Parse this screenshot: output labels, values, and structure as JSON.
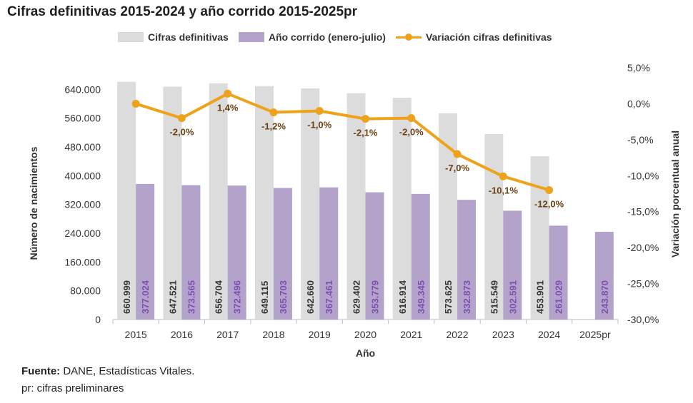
{
  "colors": {
    "gray": "#dcdcdc",
    "purple": "#b3a3ca",
    "orange": "#eea21c",
    "purple_text": "#7a4fb0",
    "label_brown": "#6b3f10",
    "dark_text": "#333333"
  },
  "chart_data": {
    "type": "bar",
    "title": "Cifras definitivas 2015-2024 y año corrido 2015-2025pr",
    "xlabel": "Año",
    "ylabel": "Número de nacimientos",
    "y2label": "Variación porcentual anual",
    "ylim": [
      0,
      640000
    ],
    "y2lim": [
      -30,
      5
    ],
    "yticks": [
      "0",
      "80.000",
      "160.000",
      "240.000",
      "320.000",
      "400.000",
      "480.000",
      "560.000",
      "640.000"
    ],
    "y2ticks": [
      "5,0%",
      "0,0%",
      "-5,0%",
      "-10,0%",
      "-15,0%",
      "-20,0%",
      "-25,0%",
      "-30,0%"
    ],
    "categories": [
      "2015",
      "2016",
      "2017",
      "2018",
      "2019",
      "2020",
      "2021",
      "2022",
      "2023",
      "2024",
      "2025pr"
    ],
    "series": [
      {
        "name": "Cifras definitivas",
        "kind": "bar",
        "values": [
          660999,
          647521,
          656704,
          649115,
          642660,
          629402,
          616914,
          573625,
          515549,
          453901,
          null
        ],
        "labels": [
          "660.999",
          "647.521",
          "656.704",
          "649.115",
          "642.660",
          "629.402",
          "616.914",
          "573.625",
          "515.549",
          "453.901",
          ""
        ]
      },
      {
        "name": "Año corrido (enero-julio)",
        "kind": "bar",
        "values": [
          377024,
          373565,
          372496,
          365703,
          367461,
          353779,
          349345,
          332873,
          302591,
          261029,
          243870
        ],
        "labels": [
          "377.024",
          "373.565",
          "372.496",
          "365.703",
          "367.461",
          "353.779",
          "349.345",
          "332.873",
          "302.591",
          "261.029",
          "243.870"
        ]
      },
      {
        "name": "Variación cifras definitivas",
        "kind": "line",
        "axis": "right",
        "values": [
          0.0,
          -2.0,
          1.4,
          -1.2,
          -1.0,
          -2.1,
          -2.0,
          -7.0,
          -10.1,
          -12.0,
          null
        ],
        "labels": [
          "",
          "-2,0%",
          "1,4%",
          "-1,2%",
          "-1,0%",
          "-2,1%",
          "-2,0%",
          "-7,0%",
          "-10,1%",
          "-12,0%",
          ""
        ]
      }
    ]
  },
  "source": {
    "label": "Fuente:",
    "text": "DANE, Estadísticas Vitales."
  },
  "note": "pr: cifras preliminares"
}
